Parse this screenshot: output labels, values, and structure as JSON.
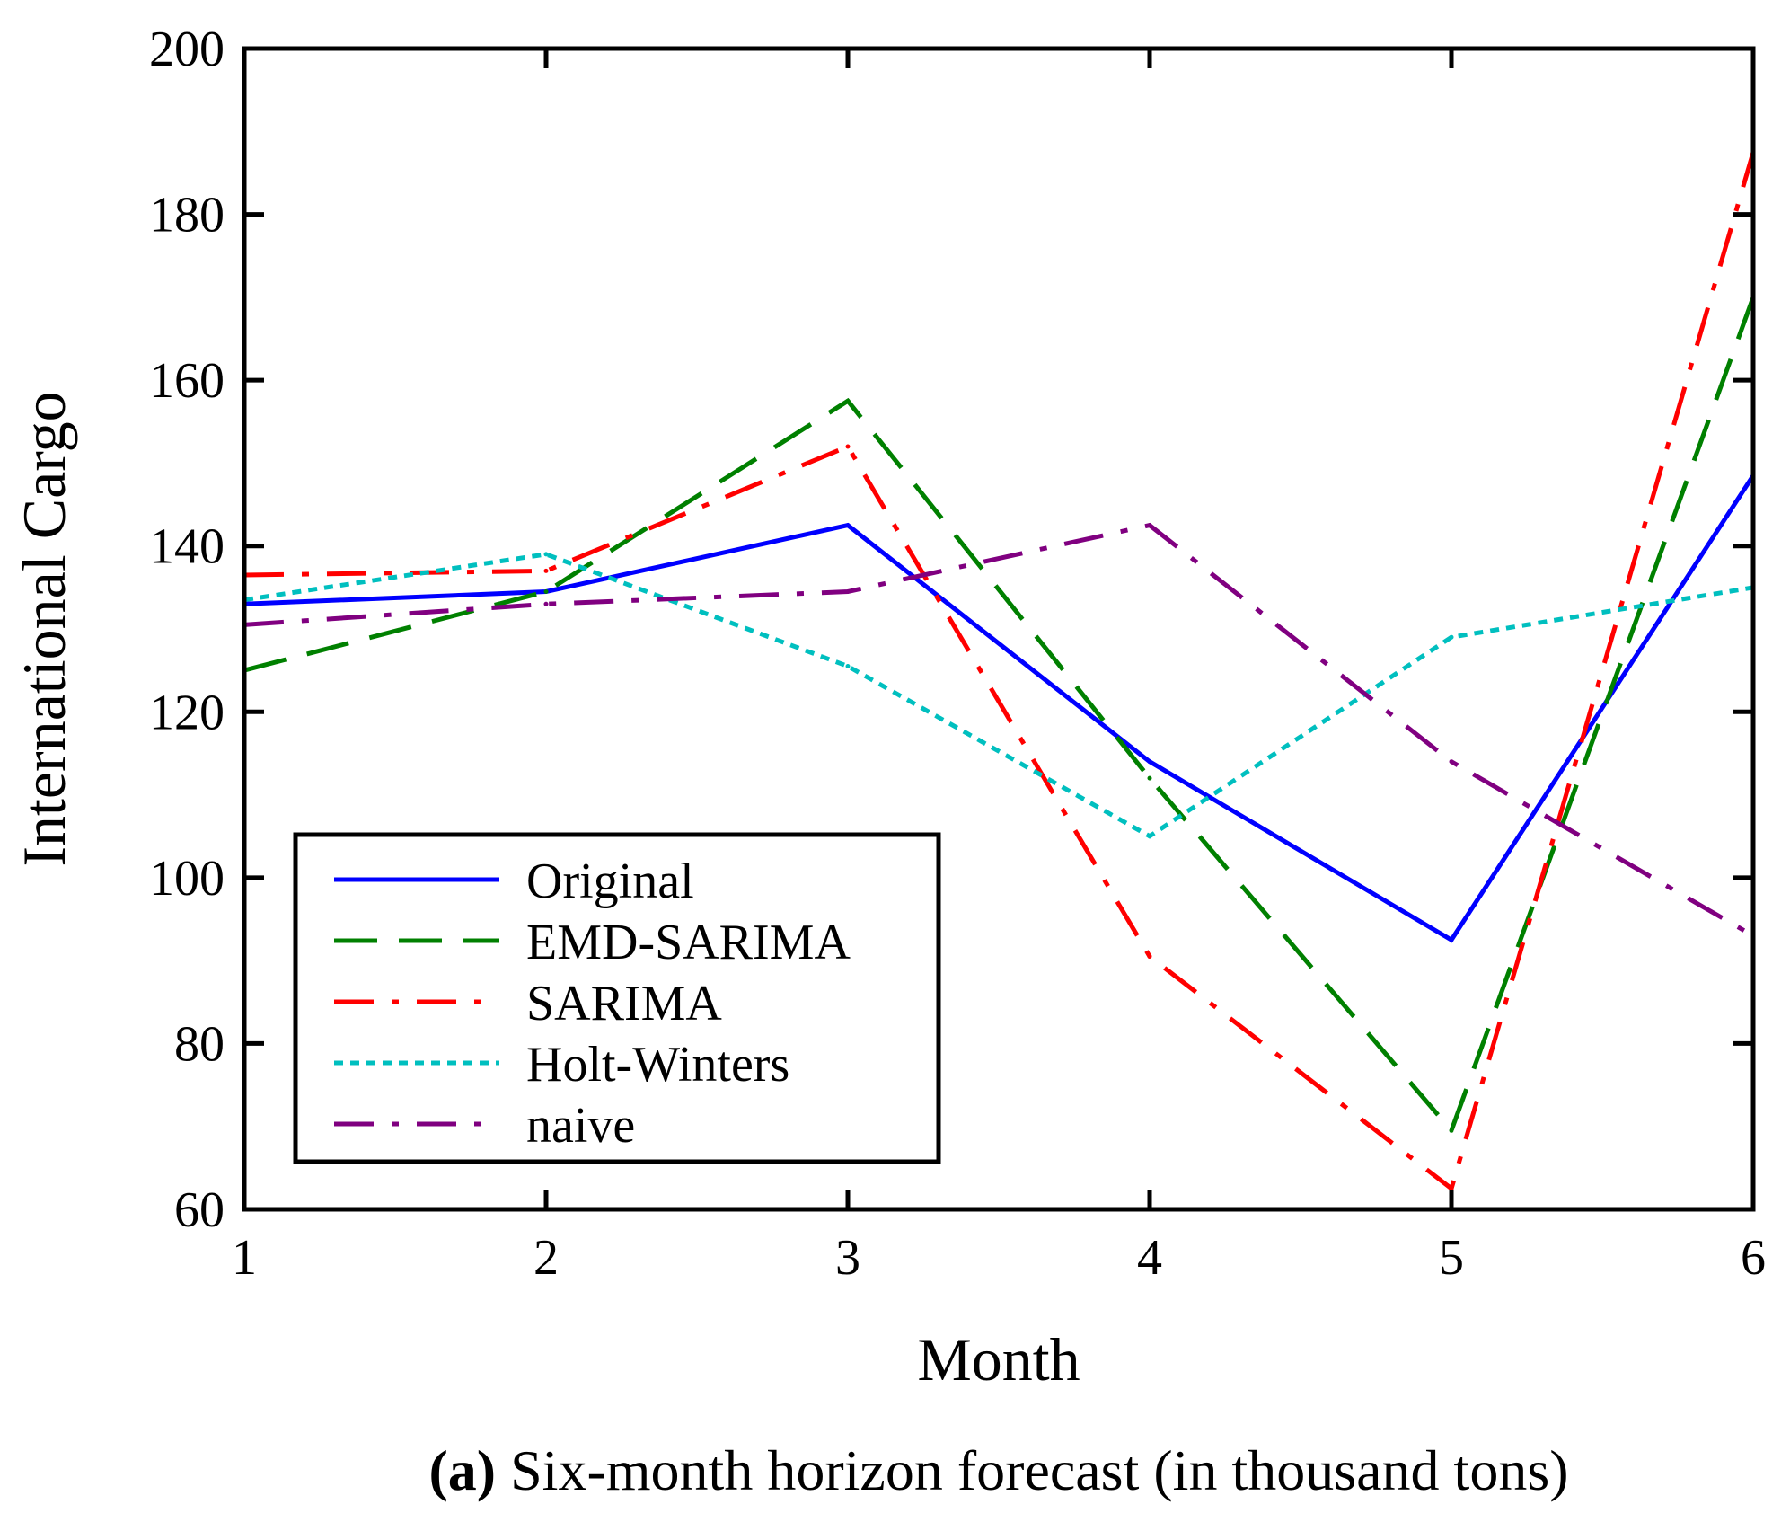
{
  "chart_data": {
    "type": "line",
    "xlabel": "Month",
    "ylabel": "International Cargo",
    "xlim": [
      1,
      6
    ],
    "ylim": [
      60,
      200
    ],
    "xticks": [
      1,
      2,
      3,
      4,
      5,
      6
    ],
    "yticks": [
      60,
      80,
      100,
      120,
      140,
      160,
      180,
      200
    ],
    "x": [
      1,
      2,
      3,
      4,
      5,
      6
    ],
    "grid": false,
    "legend_position": "bottom-left",
    "series": [
      {
        "name": "Original",
        "values": [
          133,
          134.5,
          142.5,
          114,
          92.5,
          148.5
        ],
        "color": "#0000ff",
        "style": "solid"
      },
      {
        "name": "EMD-SARIMA",
        "values": [
          125,
          134.5,
          157.5,
          112,
          69.5,
          170
        ],
        "color": "#008000",
        "style": "dashed"
      },
      {
        "name": "SARIMA",
        "values": [
          136.5,
          137,
          152,
          90.5,
          62.5,
          187.5
        ],
        "color": "#ff0000",
        "style": "dashdot"
      },
      {
        "name": "Holt-Winters",
        "values": [
          133.5,
          139,
          125.5,
          105,
          129,
          135
        ],
        "color": "#00bfbf",
        "style": "dotted"
      },
      {
        "name": "naive",
        "values": [
          130.5,
          133,
          134.5,
          142.5,
          114,
          93
        ],
        "color": "#800080",
        "style": "dashdot"
      }
    ]
  },
  "caption": {
    "label": "(a)",
    "text": " Six-month horizon forecast (in thousand tons)"
  }
}
